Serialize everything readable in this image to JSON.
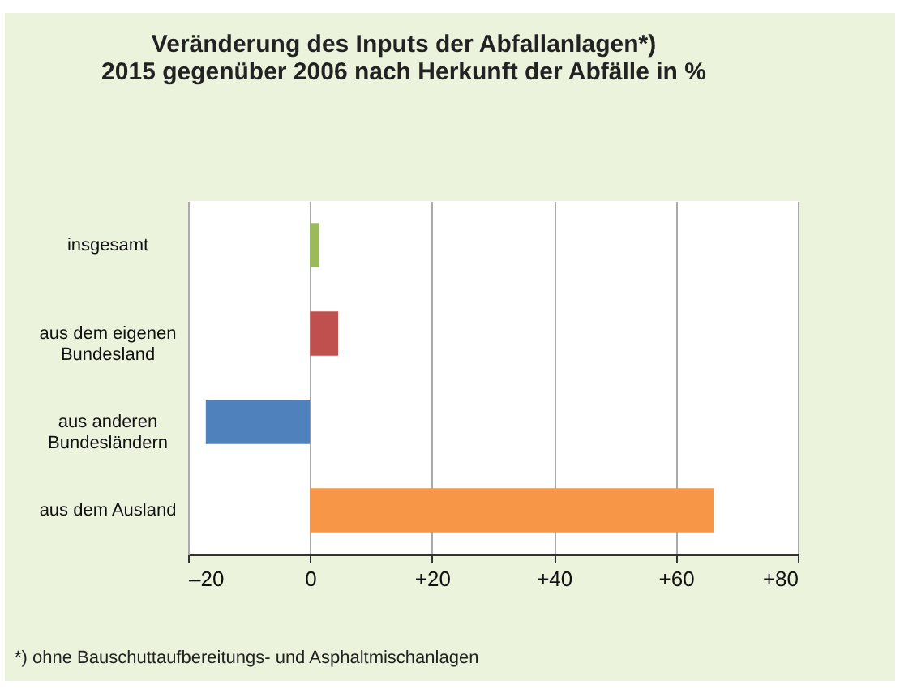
{
  "chart_data": {
    "type": "bar",
    "orientation": "horizontal",
    "title": "Veränderung des Inputs der Abfallanlagen*)\n2015 gegenüber 2006 nach Herkunft der Abfälle in %",
    "categories": [
      "insgesamt",
      "aus dem eigenen\nBundesland",
      "aus anderen\nBundesländern",
      "aus dem Ausland"
    ],
    "values": [
      1.5,
      4.6,
      -17.1,
      66.2
    ],
    "colors": [
      "#9bbb59",
      "#c0504d",
      "#4f81bd",
      "#f79646"
    ],
    "xlim": [
      -20,
      80
    ],
    "xticks": [
      {
        "value": -20,
        "label": "–20"
      },
      0,
      {
        "value": 20,
        "label": "+20"
      },
      {
        "value": 40,
        "label": "+40"
      },
      {
        "value": 60,
        "label": "+60"
      },
      {
        "value": 80,
        "label": "+80"
      }
    ],
    "grid": "x",
    "annotations": [
      "*) ohne Bauschuttaufbereitungs- und Asphaltmischanlagen"
    ]
  }
}
